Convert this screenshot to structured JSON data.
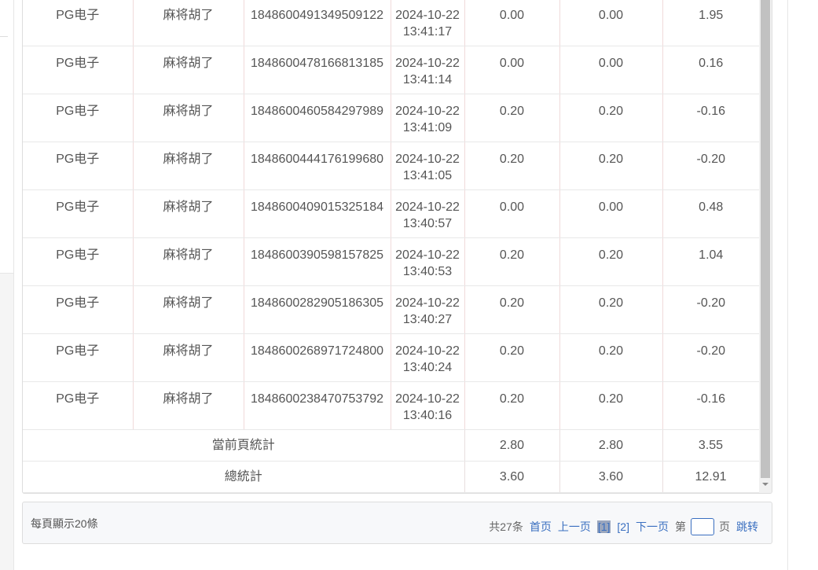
{
  "rows": [
    {
      "platform": "PG电子",
      "game": "麻将胡了",
      "id": "1848600491349509122",
      "date": "2024-10-22",
      "time": "13:41:17",
      "bet": "0.00",
      "valid": "0.00",
      "result": "1.95"
    },
    {
      "platform": "PG电子",
      "game": "麻将胡了",
      "id": "1848600478166813185",
      "date": "2024-10-22",
      "time": "13:41:14",
      "bet": "0.00",
      "valid": "0.00",
      "result": "0.16"
    },
    {
      "platform": "PG电子",
      "game": "麻将胡了",
      "id": "1848600460584297989",
      "date": "2024-10-22",
      "time": "13:41:09",
      "bet": "0.20",
      "valid": "0.20",
      "result": "-0.16"
    },
    {
      "platform": "PG电子",
      "game": "麻将胡了",
      "id": "1848600444176199680",
      "date": "2024-10-22",
      "time": "13:41:05",
      "bet": "0.20",
      "valid": "0.20",
      "result": "-0.20"
    },
    {
      "platform": "PG电子",
      "game": "麻将胡了",
      "id": "1848600409015325184",
      "date": "2024-10-22",
      "time": "13:40:57",
      "bet": "0.00",
      "valid": "0.00",
      "result": "0.48"
    },
    {
      "platform": "PG电子",
      "game": "麻将胡了",
      "id": "1848600390598157825",
      "date": "2024-10-22",
      "time": "13:40:53",
      "bet": "0.20",
      "valid": "0.20",
      "result": "1.04"
    },
    {
      "platform": "PG电子",
      "game": "麻将胡了",
      "id": "1848600282905186305",
      "date": "2024-10-22",
      "time": "13:40:27",
      "bet": "0.20",
      "valid": "0.20",
      "result": "-0.20"
    },
    {
      "platform": "PG电子",
      "game": "麻将胡了",
      "id": "1848600268971724800",
      "date": "2024-10-22",
      "time": "13:40:24",
      "bet": "0.20",
      "valid": "0.20",
      "result": "-0.20"
    },
    {
      "platform": "PG电子",
      "game": "麻将胡了",
      "id": "1848600238470753792",
      "date": "2024-10-22",
      "time": "13:40:16",
      "bet": "0.20",
      "valid": "0.20",
      "result": "-0.16"
    }
  ],
  "summary": {
    "page": {
      "label": "當前頁統計",
      "bet": "2.80",
      "valid": "2.80",
      "result": "3.55"
    },
    "total": {
      "label": "總統計",
      "bet": "3.60",
      "valid": "3.60",
      "result": "12.91"
    }
  },
  "pager": {
    "per_page": "每頁顯示20條",
    "total": "共27条",
    "first": "首页",
    "prev": "上一页",
    "page1": "[1]",
    "page2": "[2]",
    "next": "下一页",
    "goto_prefix": "第",
    "goto_value": "",
    "goto_suffix": "页",
    "jump": "跳转"
  }
}
